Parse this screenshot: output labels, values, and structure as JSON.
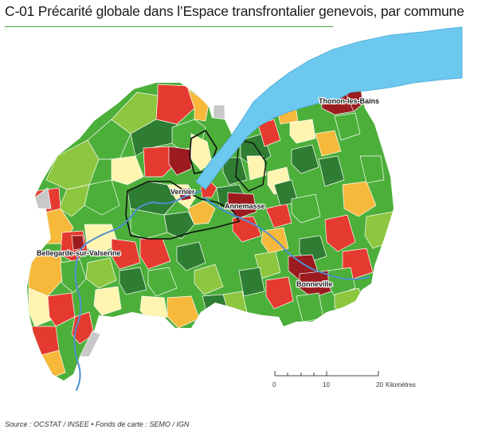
{
  "title": "C-01 Précarité globale dans l’Espace transfrontalier genevois, par commune",
  "towns": {
    "thonon": "Thonon-les-Bains",
    "vernier": "Vernier",
    "annemasse": "Annemasse",
    "bellegarde": "Bellegarde-sur-Valserine",
    "bonneville": "Bonneville"
  },
  "scale": {
    "ticks": [
      "0",
      "10",
      "20"
    ],
    "unit": "Kilomètres"
  },
  "source": "Source : OCSTAT / INSEE • Fonds de carte : SEMO / IGN",
  "colors": {
    "lake": "#6cc8ee",
    "river": "#4e8fd0",
    "dark_green": "#2e7d32",
    "green": "#4caf3a",
    "light_green": "#8dc63f",
    "pale_yellow": "#fff5b0",
    "orange": "#f6b93b",
    "red": "#e53a2f",
    "dark_red": "#9b1b1e",
    "grey": "#c8c8c8"
  }
}
